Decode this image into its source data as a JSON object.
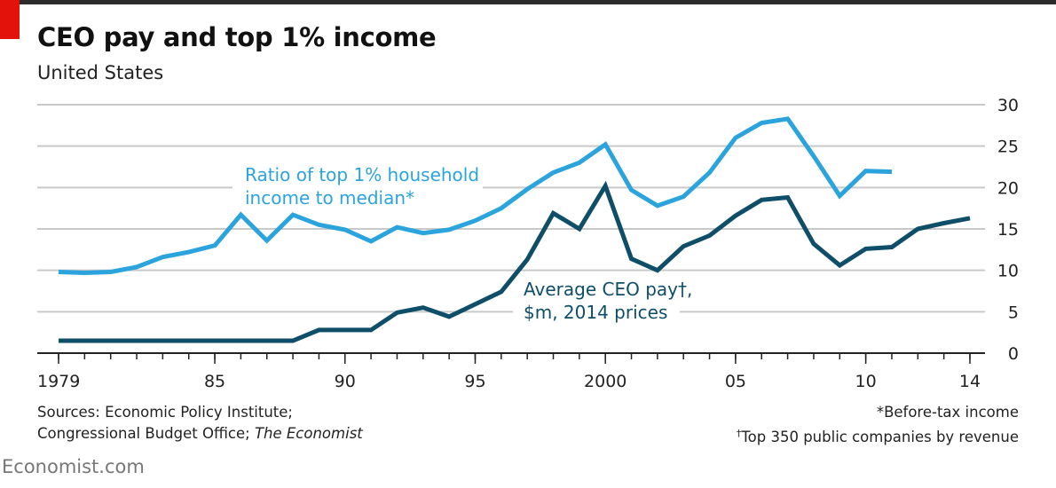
{
  "header": {
    "title": "CEO pay and top 1% income",
    "subtitle": "United States"
  },
  "colors": {
    "ratio_series": "#2ba4dd",
    "ceo_series": "#0e4e69",
    "grid": "#c9c9c9",
    "accent": "#e3120b"
  },
  "chart_data": {
    "type": "line",
    "title": "CEO pay and top 1% income",
    "subtitle": "United States",
    "ylim": [
      0,
      30
    ],
    "yticks": [
      0,
      5,
      10,
      15,
      20,
      25,
      30
    ],
    "y_axis_side": "right",
    "xlim": [
      1979,
      2014
    ],
    "xticks": [
      1979,
      1985,
      1990,
      1995,
      2000,
      2005,
      2010,
      2014
    ],
    "xtick_labels": [
      "1979",
      "85",
      "90",
      "95",
      "2000",
      "05",
      "10",
      "14"
    ],
    "grid": true,
    "series": [
      {
        "name": "Ratio of top 1% household income to median*",
        "label_lines": [
          "Ratio of top 1% household",
          "income to median*"
        ],
        "color": "#2ba4dd",
        "points": [
          [
            1979,
            9.8
          ],
          [
            1980,
            9.7
          ],
          [
            1981,
            9.8
          ],
          [
            1982,
            10.4
          ],
          [
            1983,
            11.6
          ],
          [
            1984,
            12.2
          ],
          [
            1985,
            13.0
          ],
          [
            1986,
            16.7
          ],
          [
            1987,
            13.6
          ],
          [
            1988,
            16.7
          ],
          [
            1989,
            15.5
          ],
          [
            1990,
            14.9
          ],
          [
            1991,
            13.5
          ],
          [
            1992,
            15.2
          ],
          [
            1993,
            14.5
          ],
          [
            1994,
            14.9
          ],
          [
            1995,
            16.0
          ],
          [
            1996,
            17.5
          ],
          [
            1997,
            19.8
          ],
          [
            1998,
            21.8
          ],
          [
            1999,
            23.0
          ],
          [
            2000,
            25.2
          ],
          [
            2001,
            19.7
          ],
          [
            2002,
            17.8
          ],
          [
            2003,
            18.9
          ],
          [
            2004,
            21.8
          ],
          [
            2005,
            26.0
          ],
          [
            2006,
            27.8
          ],
          [
            2007,
            28.3
          ],
          [
            2008,
            23.8
          ],
          [
            2009,
            19.0
          ],
          [
            2010,
            22.0
          ],
          [
            2011,
            21.9
          ]
        ]
      },
      {
        "name": "Average CEO pay†, $m, 2014 prices",
        "label_lines": [
          "Average CEO pay†,",
          "$m, 2014 prices"
        ],
        "color": "#0e4e69",
        "points": [
          [
            1979,
            1.5
          ],
          [
            1980,
            1.5
          ],
          [
            1981,
            1.5
          ],
          [
            1982,
            1.5
          ],
          [
            1983,
            1.5
          ],
          [
            1984,
            1.5
          ],
          [
            1985,
            1.5
          ],
          [
            1986,
            1.5
          ],
          [
            1987,
            1.5
          ],
          [
            1988,
            1.5
          ],
          [
            1989,
            2.8
          ],
          [
            1990,
            2.8
          ],
          [
            1991,
            2.8
          ],
          [
            1992,
            4.9
          ],
          [
            1993,
            5.5
          ],
          [
            1994,
            4.4
          ],
          [
            1995,
            5.9
          ],
          [
            1996,
            7.4
          ],
          [
            1997,
            11.3
          ],
          [
            1998,
            16.9
          ],
          [
            1999,
            15.0
          ],
          [
            2000,
            20.2
          ],
          [
            2001,
            11.4
          ],
          [
            2002,
            10.0
          ],
          [
            2003,
            12.9
          ],
          [
            2004,
            14.2
          ],
          [
            2005,
            16.6
          ],
          [
            2006,
            18.5
          ],
          [
            2007,
            18.8
          ],
          [
            2008,
            13.2
          ],
          [
            2009,
            10.6
          ],
          [
            2010,
            12.6
          ],
          [
            2011,
            12.8
          ],
          [
            2012,
            15.0
          ],
          [
            2013,
            15.7
          ],
          [
            2014,
            16.3
          ]
        ]
      }
    ]
  },
  "footer": {
    "sources_line1": "Sources: Economic Policy Institute;",
    "sources_line2_plain": "Congressional Budget Office; ",
    "sources_line2_italic": "The Economist",
    "note1": "*Before-tax income",
    "note2_mark": "†",
    "note2_text": "Top 350 public companies by revenue"
  },
  "brand": "Economist.com"
}
